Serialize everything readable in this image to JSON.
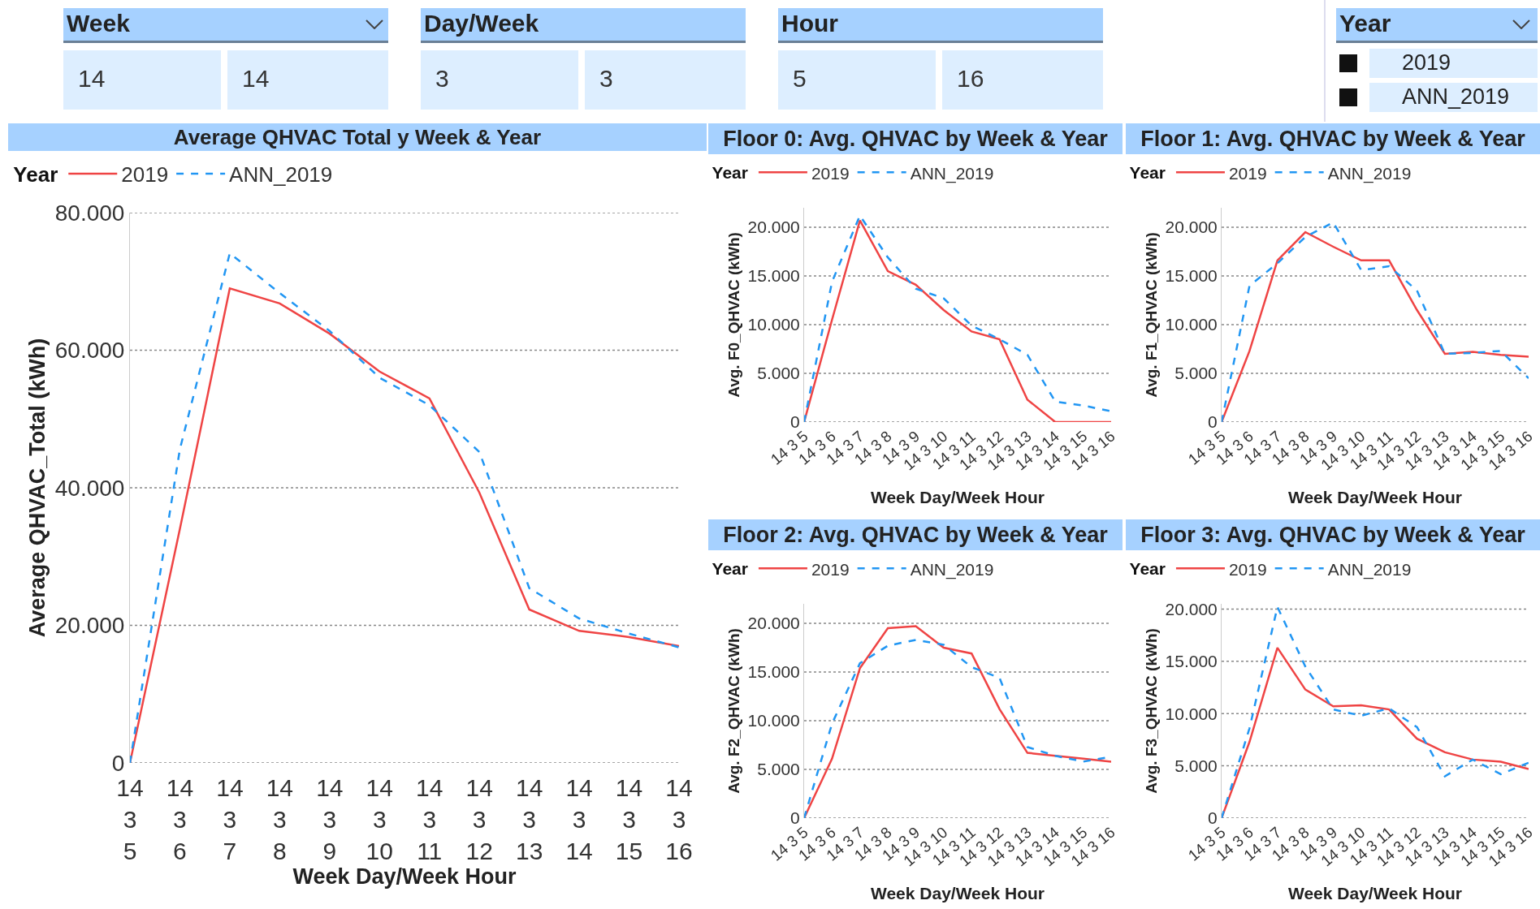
{
  "chart_data": [
    {
      "type": "other",
      "annotations": [
        "Week",
        "14",
        "14",
        "Day/Week",
        "3",
        "3",
        "Hour",
        "5",
        "16",
        "Year",
        "2019",
        "ANN_2019"
      ]
    },
    {
      "type": "line",
      "title": "Average QHVAC Total y Week & Year",
      "xlabel": "Week Day/Week Hour",
      "ylabel": "Average QHVAC_Total (kWh)",
      "legend_title": "Year",
      "legend": "top left",
      "grid": "y",
      "marker": "none",
      "categories": [
        "14 3 5",
        "14 3 6",
        "14 3 7",
        "14 3 8",
        "14 3 9",
        "14 3 10",
        "14 3 11",
        "14 3 12",
        "14 3 13",
        "14 3 14",
        "14 3 15",
        "14 3 16"
      ],
      "ylim": [
        0,
        80000
      ],
      "yticks": [
        {
          "value": 0,
          "label": "0"
        },
        {
          "value": 20000,
          "label": "20.000"
        },
        {
          "value": 40000,
          "label": "40.000"
        },
        {
          "value": 60000,
          "label": "60.000"
        },
        {
          "value": 80000,
          "label": "80.000"
        }
      ],
      "series": [
        {
          "name": "2019",
          "color": "#ef4444",
          "line_style": "solid",
          "values": [
            0,
            34000,
            69000,
            66800,
            62400,
            56900,
            53000,
            39300,
            22300,
            19200,
            18300,
            17000
          ]
        },
        {
          "name": "ANN_2019",
          "color": "#2196f3",
          "line_style": "dashed",
          "values": [
            0,
            45600,
            74100,
            68300,
            62800,
            56000,
            52000,
            45200,
            25400,
            21000,
            18800,
            16800
          ]
        }
      ]
    },
    {
      "type": "line",
      "title": "Floor 0: Avg. QHVAC by Week & Year",
      "xlabel": "Week Day/Week Hour",
      "ylabel": "Avg. F0_QHVAC (kWh)",
      "legend_title": "Year",
      "legend": "top left",
      "grid": "y",
      "marker": "none",
      "categories": [
        "14 3 5",
        "14 3 6",
        "14 3 7",
        "14 3 8",
        "14 3 9",
        "14 3 10",
        "14 3 11",
        "14 3 12",
        "14 3 13",
        "14 3 14",
        "14 3 15",
        "14 3 16"
      ],
      "ylim": [
        0,
        22000
      ],
      "yticks": [
        {
          "value": 0,
          "label": "0"
        },
        {
          "value": 5000,
          "label": "5.000"
        },
        {
          "value": 10000,
          "label": "10.000"
        },
        {
          "value": 15000,
          "label": "15.000"
        },
        {
          "value": 20000,
          "label": "20.000"
        }
      ],
      "series": [
        {
          "name": "2019",
          "color": "#ef4444",
          "line_style": "solid",
          "values": [
            0,
            10500,
            20700,
            15500,
            14100,
            11500,
            9300,
            8500,
            2300,
            0,
            0,
            0
          ]
        },
        {
          "name": "ANN_2019",
          "color": "#2196f3",
          "line_style": "dashed",
          "values": [
            0,
            14400,
            21200,
            16900,
            13700,
            12700,
            9900,
            8500,
            6900,
            2100,
            1700,
            1100
          ]
        }
      ]
    },
    {
      "type": "line",
      "title": "Floor 1: Avg. QHVAC by Week & Year",
      "xlabel": "Week Day/Week Hour",
      "ylabel": "Avg. F1_QHVAC (kWh)",
      "legend_title": "Year",
      "legend": "top left",
      "grid": "y",
      "marker": "none",
      "categories": [
        "14 3 5",
        "14 3 6",
        "14 3 7",
        "14 3 8",
        "14 3 9",
        "14 3 10",
        "14 3 11",
        "14 3 12",
        "14 3 13",
        "14 3 14",
        "14 3 15",
        "14 3 16"
      ],
      "ylim": [
        0,
        22000
      ],
      "yticks": [
        {
          "value": 0,
          "label": "0"
        },
        {
          "value": 5000,
          "label": "5.000"
        },
        {
          "value": 10000,
          "label": "10.000"
        },
        {
          "value": 15000,
          "label": "15.000"
        },
        {
          "value": 20000,
          "label": "20.000"
        }
      ],
      "series": [
        {
          "name": "2019",
          "color": "#ef4444",
          "line_style": "solid",
          "values": [
            0,
            7300,
            16600,
            19500,
            18000,
            16600,
            16600,
            11500,
            7000,
            7200,
            6900,
            6700
          ]
        },
        {
          "name": "ANN_2019",
          "color": "#2196f3",
          "line_style": "dashed",
          "values": [
            0,
            14000,
            16300,
            19000,
            20500,
            15600,
            16000,
            13500,
            7000,
            7100,
            7300,
            4500
          ]
        }
      ]
    },
    {
      "type": "line",
      "title": "Floor 2: Avg. QHVAC by Week & Year",
      "xlabel": "Week Day/Week Hour",
      "ylabel": "Avg. F2_QHVAC (kWh)",
      "legend_title": "Year",
      "legend": "top left",
      "grid": "y",
      "marker": "none",
      "categories": [
        "14 3 5",
        "14 3 6",
        "14 3 7",
        "14 3 8",
        "14 3 9",
        "14 3 10",
        "14 3 11",
        "14 3 12",
        "14 3 13",
        "14 3 14",
        "14 3 15",
        "14 3 16"
      ],
      "ylim": [
        0,
        22000
      ],
      "yticks": [
        {
          "value": 0,
          "label": "0"
        },
        {
          "value": 5000,
          "label": "5.000"
        },
        {
          "value": 10000,
          "label": "10.000"
        },
        {
          "value": 15000,
          "label": "15.000"
        },
        {
          "value": 20000,
          "label": "20.000"
        }
      ],
      "series": [
        {
          "name": "2019",
          "color": "#ef4444",
          "line_style": "solid",
          "values": [
            0,
            6100,
            15400,
            19500,
            19700,
            17500,
            16900,
            11200,
            6700,
            6400,
            6100,
            5800
          ]
        },
        {
          "name": "ANN_2019",
          "color": "#2196f3",
          "line_style": "dashed",
          "values": [
            0,
            9700,
            15900,
            17700,
            18300,
            17800,
            15500,
            14400,
            7300,
            6400,
            5800,
            6300
          ]
        }
      ]
    },
    {
      "type": "line",
      "title": "Floor 3: Avg. QHVAC by Week & Year",
      "xlabel": "Week Day/Week Hour",
      "ylabel": "Avg. F3_QHVAC (kWh)",
      "legend_title": "Year",
      "legend": "top left",
      "grid": "y",
      "marker": "none",
      "categories": [
        "14 3 5",
        "14 3 6",
        "14 3 7",
        "14 3 8",
        "14 3 9",
        "14 3 10",
        "14 3 11",
        "14 3 12",
        "14 3 13",
        "14 3 14",
        "14 3 15",
        "14 3 16"
      ],
      "ylim": [
        0,
        20500
      ],
      "yticks": [
        {
          "value": 0,
          "label": "0"
        },
        {
          "value": 5000,
          "label": "5.000"
        },
        {
          "value": 10000,
          "label": "10.000"
        },
        {
          "value": 15000,
          "label": "15.000"
        },
        {
          "value": 20000,
          "label": "20.000"
        }
      ],
      "series": [
        {
          "name": "2019",
          "color": "#ef4444",
          "line_style": "solid",
          "values": [
            0,
            7300,
            16300,
            12300,
            10700,
            10800,
            10400,
            7600,
            6300,
            5600,
            5400,
            4700
          ]
        },
        {
          "name": "ANN_2019",
          "color": "#2196f3",
          "line_style": "dashed",
          "values": [
            0,
            8600,
            20200,
            14500,
            10400,
            9800,
            10500,
            8700,
            4000,
            5600,
            4200,
            5300
          ]
        }
      ]
    }
  ]
}
